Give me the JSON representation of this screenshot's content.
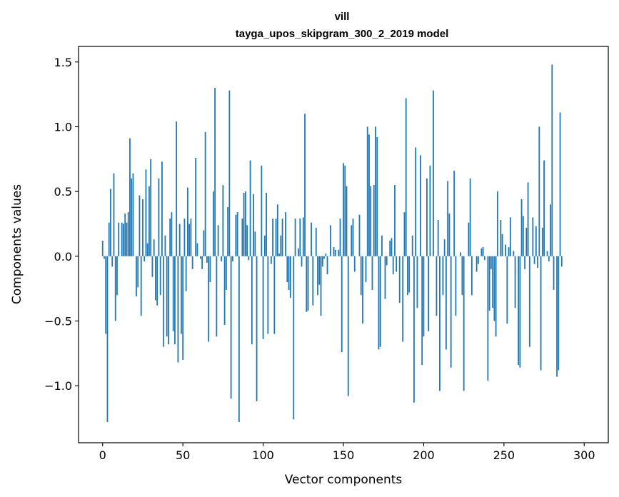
{
  "chart_data": {
    "type": "bar",
    "title_line1": "vill",
    "title_line2": "tayga_upos_skipgram_300_2_2019 model",
    "xlabel": "Vector components",
    "ylabel": "Components values",
    "xlim": [
      -15,
      315
    ],
    "ylim": [
      -1.44,
      1.62
    ],
    "xticks": [
      0,
      50,
      100,
      150,
      200,
      250,
      300
    ],
    "xtick_labels": [
      "0",
      "50",
      "100",
      "150",
      "200",
      "250",
      "300"
    ],
    "yticks": [
      -1.0,
      -0.5,
      0.0,
      0.5,
      1.0,
      1.5
    ],
    "ytick_labels": [
      "−1.0",
      "−0.5",
      "0.0",
      "0.5",
      "1.0",
      "1.5"
    ],
    "bar_color": "#1f77b4",
    "values": [
      0.12,
      -0.02,
      -0.6,
      -1.28,
      0.26,
      0.52,
      -0.08,
      0.64,
      -0.5,
      -0.3,
      0.26,
      0.0,
      0.26,
      0.25,
      0.33,
      0.26,
      0.34,
      0.91,
      0.6,
      0.64,
      0.0,
      -0.31,
      -0.24,
      0.47,
      -0.46,
      0.44,
      -0.04,
      0.67,
      0.1,
      0.54,
      0.75,
      -0.16,
      0.13,
      -0.34,
      -0.38,
      0.6,
      -0.3,
      0.73,
      -0.7,
      0.16,
      -0.62,
      -0.68,
      0.29,
      0.34,
      -0.58,
      -0.68,
      1.04,
      -0.82,
      0.25,
      -0.6,
      -0.8,
      0.29,
      -0.27,
      0.53,
      0.25,
      0.29,
      -0.1,
      0.0,
      0.76,
      0.1,
      0.0,
      -0.02,
      -0.1,
      0.2,
      0.96,
      -0.05,
      -0.66,
      -0.2,
      0.0,
      0.5,
      1.3,
      -0.62,
      0.24,
      0.0,
      -0.04,
      0.55,
      -0.53,
      -0.26,
      0.38,
      1.28,
      -1.1,
      -0.04,
      0.0,
      0.32,
      0.34,
      -1.28,
      0.0,
      0.29,
      0.49,
      0.5,
      0.24,
      -0.03,
      0.74,
      -0.68,
      0.48,
      0.19,
      -1.12,
      0.0,
      0.0,
      0.7,
      -0.64,
      0.16,
      0.49,
      -0.6,
      0.0,
      -0.06,
      0.29,
      -0.6,
      0.29,
      0.4,
      0.02,
      0.16,
      0.29,
      0.0,
      0.34,
      -0.2,
      -0.26,
      -0.32,
      0.0,
      -1.26,
      0.29,
      0.0,
      0.06,
      0.29,
      -0.08,
      0.3,
      1.1,
      -0.43,
      -0.42,
      0.0,
      0.26,
      -0.38,
      0.0,
      0.22,
      -0.3,
      -0.22,
      -0.46,
      -0.08,
      -0.02,
      0.02,
      -0.14,
      0.0,
      0.24,
      0.0,
      0.07,
      0.05,
      0.0,
      0.05,
      0.29,
      -0.74,
      0.72,
      0.7,
      0.54,
      -1.08,
      0.0,
      0.24,
      0.29,
      -0.12,
      0.0,
      0.0,
      0.32,
      -0.3,
      -0.52,
      0.0,
      -0.2,
      1.0,
      0.94,
      0.54,
      -0.26,
      0.55,
      1.0,
      0.92,
      -0.72,
      -0.7,
      0.16,
      0.0,
      -0.33,
      -0.07,
      0.0,
      0.12,
      0.14,
      -0.14,
      0.55,
      -0.12,
      0.0,
      -0.36,
      0.0,
      -0.66,
      0.34,
      1.22,
      -0.3,
      -0.28,
      0.0,
      0.16,
      -1.13,
      0.84,
      -0.4,
      0.0,
      0.78,
      -0.84,
      -0.62,
      0.0,
      0.6,
      -0.58,
      0.7,
      0.0,
      1.28,
      0.0,
      -0.46,
      0.28,
      -1.04,
      0.0,
      -0.3,
      0.13,
      -0.72,
      0.58,
      0.33,
      -0.86,
      0.0,
      0.66,
      -0.46,
      0.0,
      0.0,
      0.03,
      -0.3,
      -1.04,
      0.0,
      0.0,
      0.26,
      0.6,
      -0.3,
      0.0,
      0.0,
      -0.12,
      -0.06,
      0.0,
      0.06,
      0.07,
      -0.03,
      0.0,
      -0.96,
      -0.42,
      -0.1,
      -0.4,
      -0.5,
      -0.62,
      0.5,
      0.0,
      0.28,
      0.17,
      0.0,
      0.09,
      -0.52,
      0.07,
      0.3,
      0.0,
      0.04,
      -0.4,
      0.0,
      -0.84,
      -0.86,
      0.44,
      0.31,
      -0.1,
      0.22,
      0.57,
      -0.7,
      0.0,
      0.3,
      -0.06,
      0.23,
      -0.09,
      1.0,
      -0.88,
      0.22,
      0.74,
      0.0,
      0.04,
      -0.04,
      0.4,
      1.48,
      -0.26,
      0.0,
      -0.93,
      -0.88,
      1.11,
      -0.08
    ]
  }
}
